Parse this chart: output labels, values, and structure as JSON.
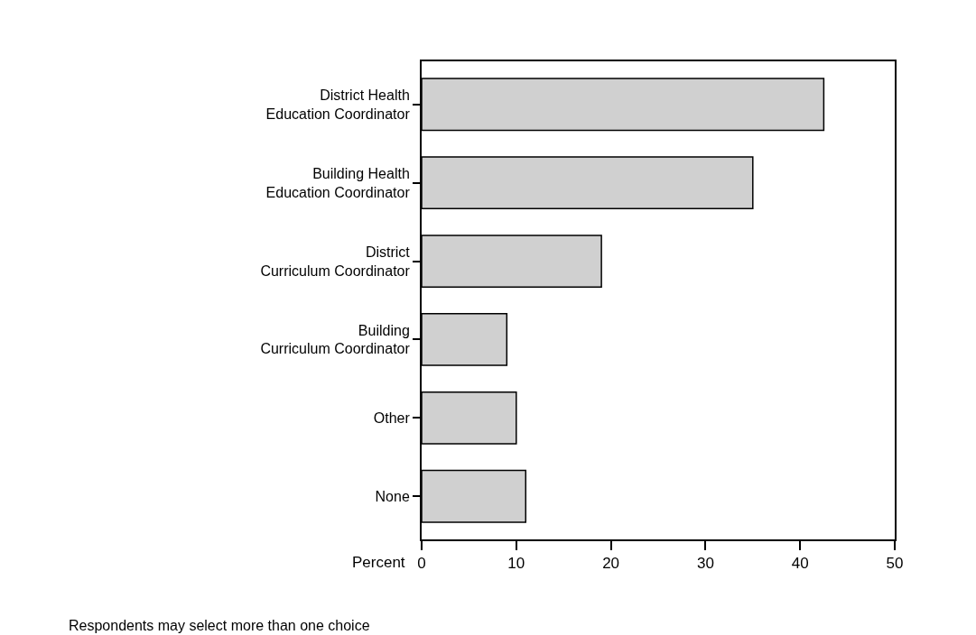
{
  "chart_data": {
    "type": "bar",
    "orientation": "horizontal",
    "categories": [
      "District Health Education Coordinator",
      "Building Health Education Coordinator",
      "District Curriculum Coordinator",
      "Building Curriculum Coordinator",
      "Other",
      "None"
    ],
    "values": [
      42.5,
      35,
      19,
      9,
      10,
      11
    ],
    "color": "#d0d0d0",
    "xlabel": "Percent",
    "xlim": [
      0,
      50
    ],
    "xticks": [
      0,
      10,
      20,
      30,
      40,
      50
    ],
    "annotations": [
      "Respondents may select more than one choice"
    ]
  }
}
